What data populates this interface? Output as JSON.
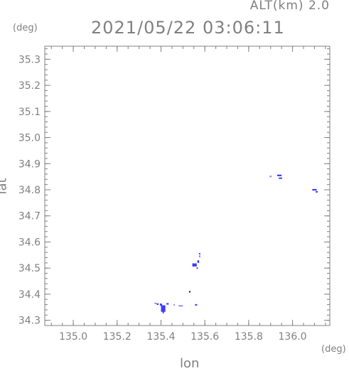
{
  "header": {
    "alt_label": "ALT(km) 2.0",
    "datetime": "2021/05/22 03:06:11"
  },
  "chart_data": {
    "type": "scatter",
    "xlabel": "lon",
    "ylabel": "lat",
    "x_unit": "(deg)",
    "y_unit": "(deg)",
    "xlim": [
      134.87,
      136.17
    ],
    "ylim": [
      34.28,
      35.35
    ],
    "x_ticks": [
      135.0,
      135.2,
      135.4,
      135.6,
      135.8,
      136.0
    ],
    "x_tick_labels": [
      "135.0",
      "135.2",
      "135.4",
      "135.6",
      "135.8",
      "136.0"
    ],
    "y_ticks": [
      34.3,
      34.4,
      34.5,
      34.6,
      34.7,
      34.8,
      34.9,
      35.0,
      35.1,
      35.2,
      35.3
    ],
    "y_tick_labels": [
      "34.3",
      "34.4",
      "34.5",
      "34.6",
      "34.7",
      "34.8",
      "34.9",
      "35.0",
      "35.1",
      "35.2",
      "35.3"
    ],
    "grid": false,
    "colors": {
      "primary": "#3c3cff",
      "secondary": "#8c8cff",
      "dark": "#000060"
    },
    "points": [
      {
        "x": 135.41,
        "y": 34.345,
        "w": 0.02,
        "h": 0.025,
        "color": "primary"
      },
      {
        "x": 135.4,
        "y": 34.36,
        "w": 0.01,
        "h": 0.008,
        "color": "primary"
      },
      {
        "x": 135.385,
        "y": 34.362,
        "w": 0.008,
        "h": 0.006,
        "color": "primary"
      },
      {
        "x": 135.375,
        "y": 34.365,
        "w": 0.01,
        "h": 0.005,
        "color": "secondary"
      },
      {
        "x": 135.43,
        "y": 34.363,
        "w": 0.01,
        "h": 0.006,
        "color": "primary"
      },
      {
        "x": 135.41,
        "y": 34.33,
        "w": 0.006,
        "h": 0.006,
        "color": "primary"
      },
      {
        "x": 135.46,
        "y": 34.36,
        "w": 0.006,
        "h": 0.004,
        "color": "secondary"
      },
      {
        "x": 135.49,
        "y": 34.356,
        "w": 0.02,
        "h": 0.004,
        "color": "secondary"
      },
      {
        "x": 135.56,
        "y": 34.36,
        "w": 0.01,
        "h": 0.004,
        "color": "primary"
      },
      {
        "x": 135.53,
        "y": 34.41,
        "w": 0.004,
        "h": 0.004,
        "color": "dark"
      },
      {
        "x": 135.553,
        "y": 34.512,
        "w": 0.02,
        "h": 0.012,
        "color": "primary"
      },
      {
        "x": 135.57,
        "y": 34.525,
        "w": 0.008,
        "h": 0.01,
        "color": "primary"
      },
      {
        "x": 135.565,
        "y": 34.5,
        "w": 0.006,
        "h": 0.005,
        "color": "primary"
      },
      {
        "x": 135.575,
        "y": 34.545,
        "w": 0.004,
        "h": 0.008,
        "color": "secondary"
      },
      {
        "x": 135.575,
        "y": 34.555,
        "w": 0.004,
        "h": 0.005,
        "color": "primary"
      },
      {
        "x": 135.9,
        "y": 34.852,
        "w": 0.01,
        "h": 0.004,
        "color": "secondary"
      },
      {
        "x": 135.94,
        "y": 34.855,
        "w": 0.02,
        "h": 0.006,
        "color": "primary"
      },
      {
        "x": 135.945,
        "y": 34.845,
        "w": 0.015,
        "h": 0.004,
        "color": "primary"
      },
      {
        "x": 136.1,
        "y": 34.8,
        "w": 0.02,
        "h": 0.006,
        "color": "primary"
      },
      {
        "x": 136.11,
        "y": 34.793,
        "w": 0.01,
        "h": 0.004,
        "color": "primary"
      }
    ]
  }
}
